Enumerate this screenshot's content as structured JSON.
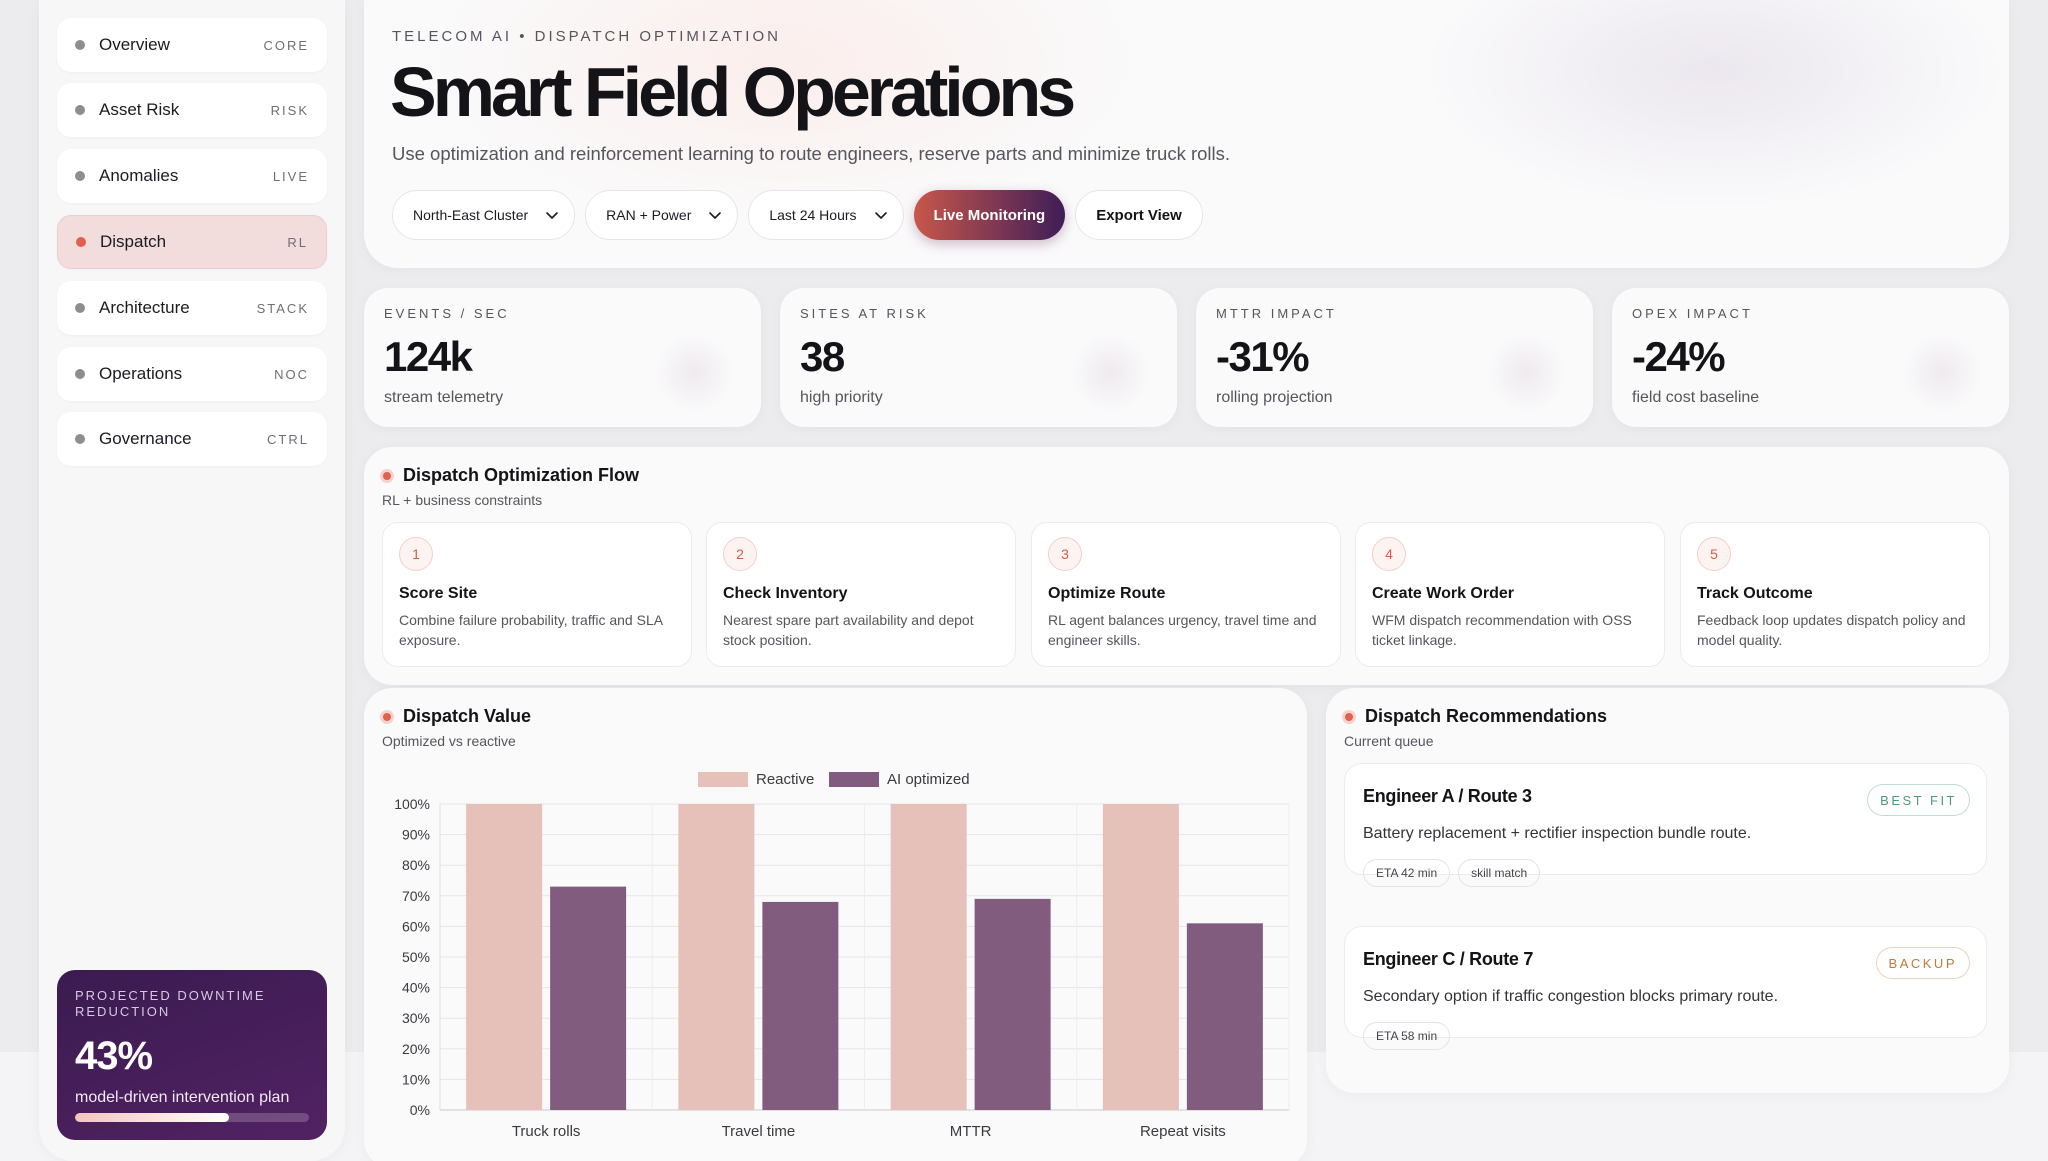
{
  "sidebar": {
    "items": [
      {
        "label": "Overview",
        "tag": "CORE"
      },
      {
        "label": "Asset Risk",
        "tag": "RISK"
      },
      {
        "label": "Anomalies",
        "tag": "LIVE"
      },
      {
        "label": "Dispatch",
        "tag": "RL"
      },
      {
        "label": "Architecture",
        "tag": "STACK"
      },
      {
        "label": "Operations",
        "tag": "NOC"
      },
      {
        "label": "Governance",
        "tag": "CTRL"
      }
    ],
    "active_index": 3,
    "promo": {
      "title": "Projected downtime reduction",
      "value": "43%",
      "subtitle": "model-driven intervention plan",
      "progress": 0.66
    }
  },
  "hero": {
    "eyebrow": "TELECOM AI • DISPATCH OPTIMIZATION",
    "title": "Smart Field Operations",
    "subtitle": "Use optimization and reinforcement learning to route engineers, reserve parts and minimize truck rolls.",
    "filters": {
      "cluster": "North-East Cluster",
      "domain": "RAN + Power",
      "range": "Last 24 Hours"
    },
    "primary_button": "Live Monitoring",
    "secondary_button": "Export View"
  },
  "kpis": [
    {
      "label": "Events / sec",
      "value": "124k",
      "sub": "stream telemetry"
    },
    {
      "label": "Sites at risk",
      "value": "38",
      "sub": "high priority"
    },
    {
      "label": "MTTR impact",
      "value": "-31%",
      "sub": "rolling projection"
    },
    {
      "label": "Opex impact",
      "value": "-24%",
      "sub": "field cost baseline"
    }
  ],
  "flow": {
    "title": "Dispatch Optimization Flow",
    "subtitle": "RL + business constraints",
    "steps": [
      {
        "num": "1",
        "title": "Score Site",
        "desc": "Combine failure probability, traffic and SLA exposure."
      },
      {
        "num": "2",
        "title": "Check Inventory",
        "desc": "Nearest spare part availability and depot stock position."
      },
      {
        "num": "3",
        "title": "Optimize Route",
        "desc": "RL agent balances urgency, travel time and engineer skills."
      },
      {
        "num": "4",
        "title": "Create Work Order",
        "desc": "WFM dispatch recommendation with OSS ticket linkage."
      },
      {
        "num": "5",
        "title": "Track Outcome",
        "desc": "Feedback loop updates dispatch policy and model quality."
      }
    ]
  },
  "value_panel": {
    "title": "Dispatch Value",
    "subtitle": "Optimized vs reactive"
  },
  "chart_data": {
    "type": "bar",
    "categories": [
      "Truck rolls",
      "Travel time",
      "MTTR",
      "Repeat visits"
    ],
    "series": [
      {
        "name": "Reactive",
        "values": [
          100,
          100,
          100,
          100
        ],
        "color": "#e5c1ba"
      },
      {
        "name": "AI optimized",
        "values": [
          73,
          68,
          69,
          61
        ],
        "color": "#815c7e"
      }
    ],
    "y_ticks": [
      "0%",
      "10%",
      "20%",
      "30%",
      "40%",
      "50%",
      "60%",
      "70%",
      "80%",
      "90%",
      "100%"
    ],
    "ylim": [
      0,
      100
    ],
    "legend": "top-center",
    "grid": true
  },
  "recommendations": {
    "title": "Dispatch Recommendations",
    "subtitle": "Current queue",
    "items": [
      {
        "title": "Engineer A / Route 3",
        "badge": "BEST FIT",
        "badge_color": "#4f9a78",
        "desc": "Battery replacement + rectifier inspection bundle route.",
        "chips": [
          "ETA 42 min",
          "skill match"
        ]
      },
      {
        "title": "Engineer C / Route 7",
        "badge": "BACKUP",
        "badge_color": "#c07a3a",
        "desc": "Secondary option if traffic congestion blocks primary route.",
        "chips": [
          "ETA 58 min"
        ]
      }
    ]
  }
}
